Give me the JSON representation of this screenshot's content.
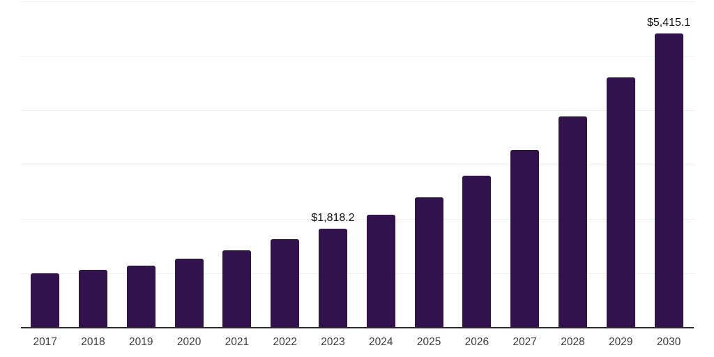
{
  "chart_data": {
    "type": "bar",
    "categories": [
      "2017",
      "2018",
      "2019",
      "2020",
      "2021",
      "2022",
      "2023",
      "2024",
      "2025",
      "2026",
      "2027",
      "2028",
      "2029",
      "2030"
    ],
    "values": [
      1000,
      1068,
      1146,
      1274,
      1424,
      1625,
      1818.2,
      2075,
      2403,
      2800,
      3270,
      3890,
      4597,
      5415.1
    ],
    "annotations": [
      {
        "category_index": 6,
        "text": "$1,818.2"
      },
      {
        "category_index": 13,
        "text": "$5,415.1"
      }
    ],
    "ylim": [
      0,
      6000
    ],
    "gridline_values": [
      1000,
      2000,
      3000,
      4000,
      5000,
      6000
    ],
    "grid": "horizontal-only",
    "legend": "none",
    "xlabel": "",
    "ylabel": "",
    "bar_color": "#31124C",
    "gridline_color": "#f2f2f2",
    "axis_line_color": "#2b2b2b",
    "tick_label_color": "#3d3d3d",
    "annotation_color": "#0d0d0d"
  }
}
